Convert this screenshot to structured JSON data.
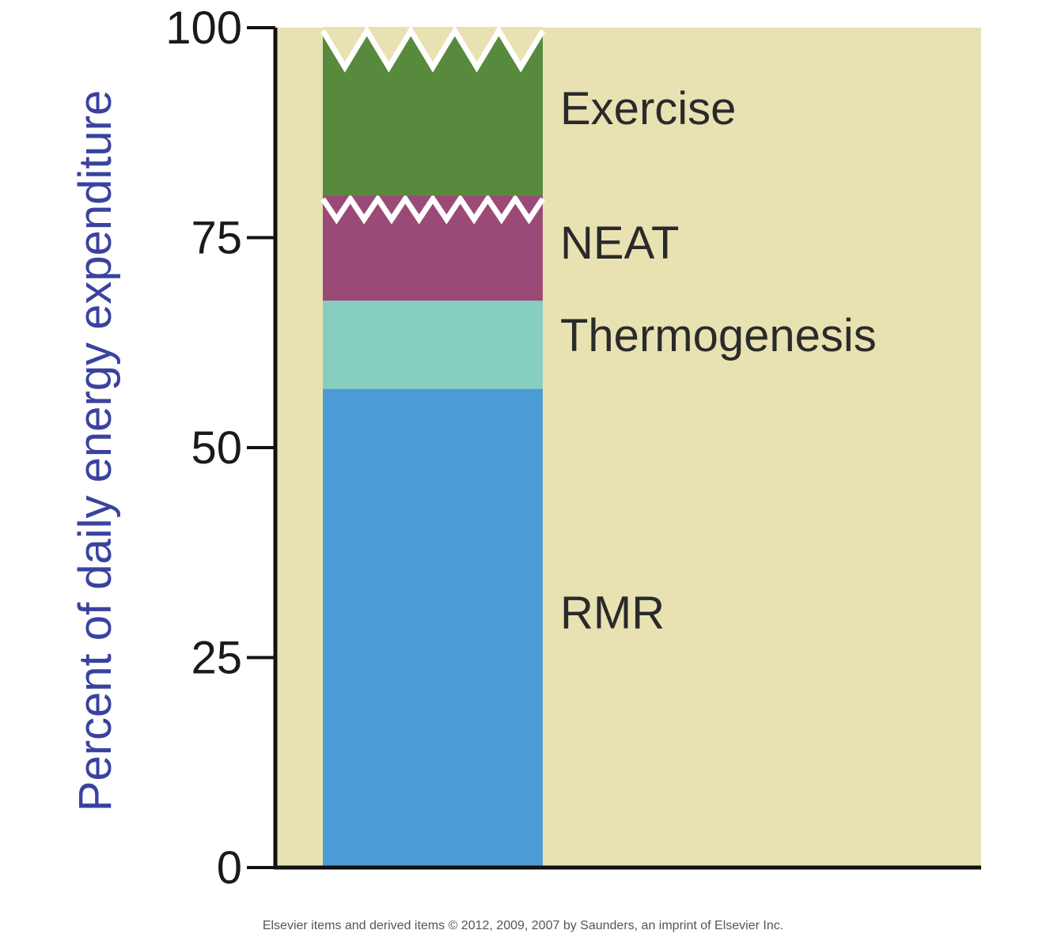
{
  "chart_data": {
    "type": "bar",
    "stacked": true,
    "ylabel": "Percent of daily energy expenditure",
    "ylim": [
      0,
      100
    ],
    "yticks": [
      0,
      25,
      50,
      75,
      100
    ],
    "grid": false,
    "segments": [
      {
        "name": "RMR",
        "from": 0,
        "to": 57,
        "color": "#4b9bd6"
      },
      {
        "name": "Thermogenesis",
        "from": 57,
        "to": 67.5,
        "color": "#86cfc0"
      },
      {
        "name": "NEAT",
        "from": 67.5,
        "to": 80,
        "color": "#9b4a77",
        "jagged_top": true
      },
      {
        "name": "Exercise",
        "from": 80,
        "to": 100,
        "color": "#588a3e",
        "jagged_top": true
      }
    ],
    "plot_background": "#e8e2b2",
    "axis_color": "#111111"
  },
  "footer": {
    "copyright": "Elsevier items and derived items © 2012, 2009, 2007 by Saunders, an imprint of Elsevier Inc."
  }
}
